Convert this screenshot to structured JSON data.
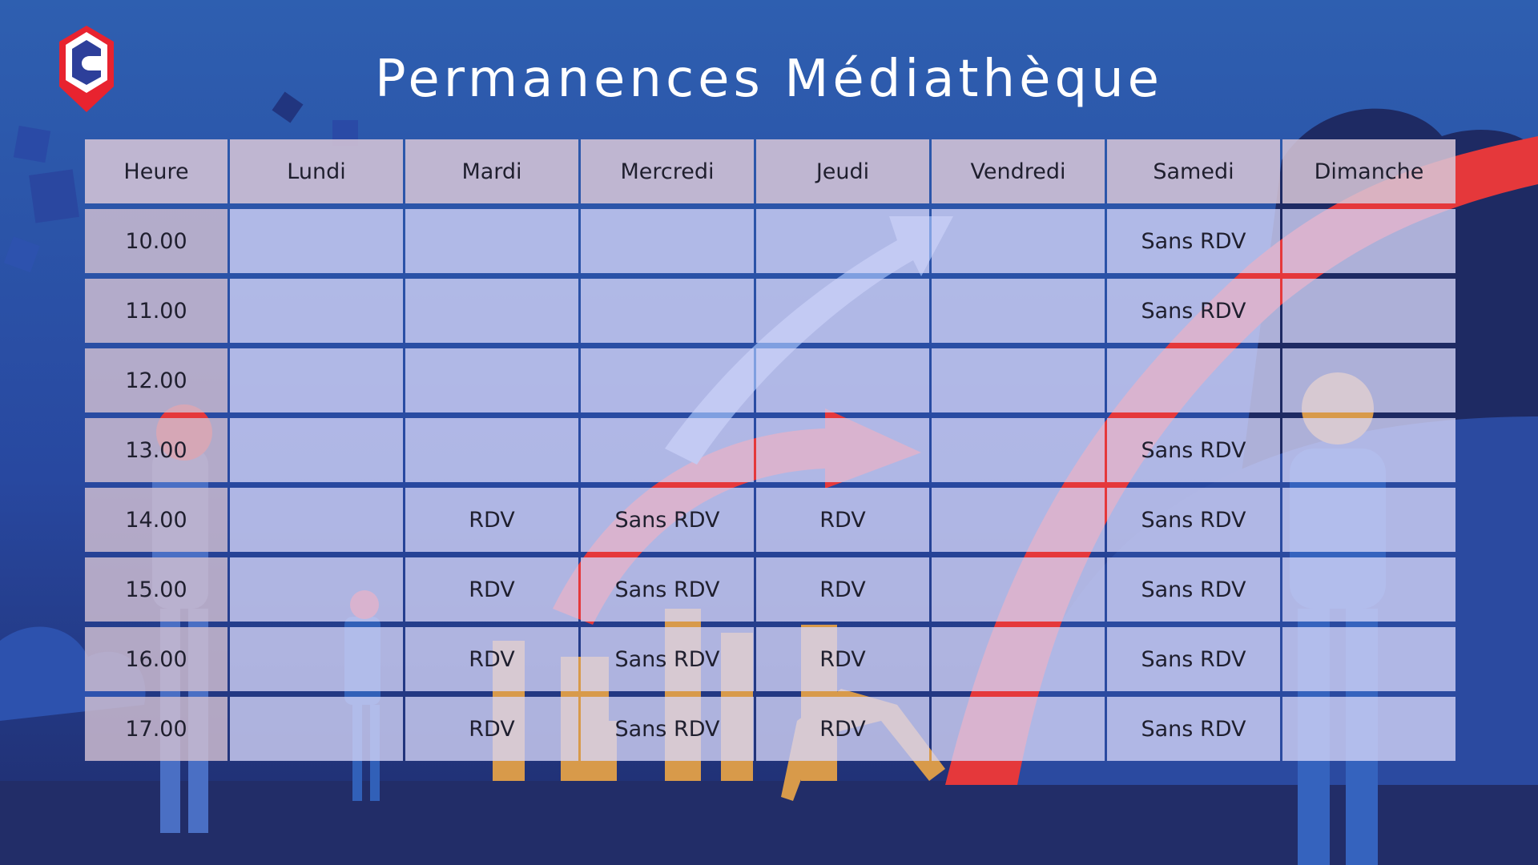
{
  "title": "Permanences Médiathèque",
  "logo": {
    "letter": "C",
    "icon": "location-pin-logo-icon",
    "colors": {
      "pin": "#e8232f",
      "hex": "#2d3f9a"
    }
  },
  "colors": {
    "background_top": "#2e5fb0",
    "background_bottom": "#1f2c6c",
    "header_cell": "#d7c6d7",
    "body_cell": "#d6d6f8",
    "accent_red": "#e5383b"
  },
  "schedule": {
    "headers": [
      "Heure",
      "Lundi",
      "Mardi",
      "Mercredi",
      "Jeudi",
      "Vendredi",
      "Samedi",
      "Dimanche"
    ],
    "rows": [
      [
        "10.00",
        "",
        "",
        "",
        "",
        "",
        "Sans RDV",
        ""
      ],
      [
        "11.00",
        "",
        "",
        "",
        "",
        "",
        "Sans RDV",
        ""
      ],
      [
        "12.00",
        "",
        "",
        "",
        "",
        "",
        "",
        ""
      ],
      [
        "13.00",
        "",
        "",
        "",
        "",
        "",
        "Sans RDV",
        ""
      ],
      [
        "14.00",
        "",
        "RDV",
        "Sans RDV",
        "RDV",
        "",
        "Sans RDV",
        ""
      ],
      [
        "15.00",
        "",
        "RDV",
        "Sans RDV",
        "RDV",
        "",
        "Sans RDV",
        ""
      ],
      [
        "16.00",
        "",
        "RDV",
        "Sans RDV",
        "RDV",
        "",
        "Sans RDV",
        ""
      ],
      [
        "17.00",
        "",
        "RDV",
        "Sans RDV",
        "RDV",
        "",
        "Sans RDV",
        ""
      ]
    ]
  }
}
